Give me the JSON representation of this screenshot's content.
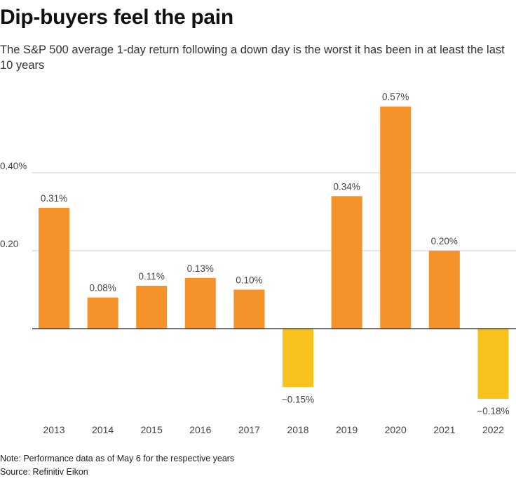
{
  "chart_data": {
    "type": "bar",
    "title": "Dip-buyers feel the pain",
    "subtitle": "The S&P 500 average 1-day return following a down day is the worst it has been in at least the last 10 years",
    "categories": [
      "2013",
      "2014",
      "2015",
      "2016",
      "2017",
      "2018",
      "2019",
      "2020",
      "2021",
      "2022"
    ],
    "values": [
      0.31,
      0.08,
      0.11,
      0.13,
      0.1,
      -0.15,
      0.34,
      0.57,
      0.2,
      -0.18
    ],
    "value_labels": [
      "0.31%",
      "0.08%",
      "0.11%",
      "0.13%",
      "0.10%",
      "−0.15%",
      "0.34%",
      "0.57%",
      "0.20%",
      "−0.18%"
    ],
    "y_ticks": [
      {
        "value": 0.4,
        "label": "0.40%"
      },
      {
        "value": 0.2,
        "label": "0.20"
      }
    ],
    "ylim": [
      -0.2,
      0.6
    ],
    "xlabel": "",
    "ylabel": "",
    "grid": true,
    "colors": {
      "positive": "#f5922a",
      "negative": "#f9c11b",
      "grid": "#cccccc",
      "zero_line": "#222222"
    }
  },
  "notes": {
    "note": "Note: Performance data as of May 6 for the respective years",
    "source": "Source: Refinitiv Eikon"
  }
}
